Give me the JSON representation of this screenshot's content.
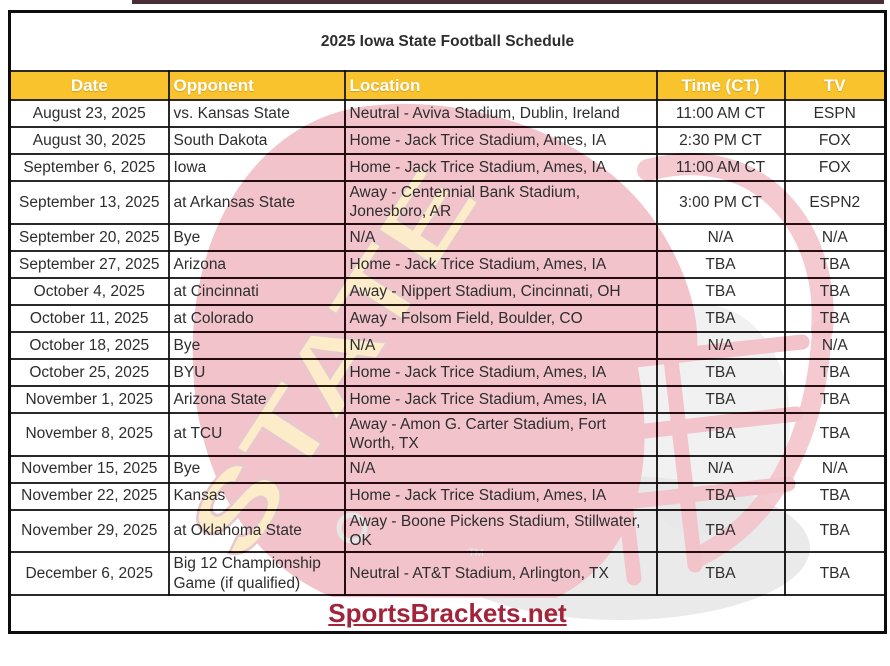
{
  "title": "2025 Iowa State Football Schedule",
  "columns": [
    "Date",
    "Opponent",
    "Location",
    "Time (CT)",
    "TV"
  ],
  "rows": [
    {
      "date": "August 23, 2025",
      "opponent": "vs. Kansas State",
      "location": "Neutral - Aviva Stadium, Dublin, Ireland",
      "time": "11:00 AM CT",
      "tv": "ESPN"
    },
    {
      "date": "August 30, 2025",
      "opponent": "South Dakota",
      "location": "Home - Jack Trice Stadium, Ames, IA",
      "time": "2:30 PM CT",
      "tv": "FOX"
    },
    {
      "date": "September 6, 2025",
      "opponent": "Iowa",
      "location": "Home - Jack Trice Stadium, Ames, IA",
      "time": "11:00 AM CT",
      "tv": "FOX"
    },
    {
      "date": "September 13, 2025",
      "opponent": "at Arkansas State",
      "location": "Away - Centennial Bank Stadium, Jonesboro, AR",
      "time": "3:00 PM CT",
      "tv": "ESPN2"
    },
    {
      "date": "September 20, 2025",
      "opponent": "Bye",
      "location": "N/A",
      "time": "N/A",
      "tv": "N/A"
    },
    {
      "date": "September 27, 2025",
      "opponent": "Arizona",
      "location": "Home - Jack Trice Stadium, Ames, IA",
      "time": "TBA",
      "tv": "TBA"
    },
    {
      "date": "October 4, 2025",
      "opponent": "at Cincinnati",
      "location": "Away - Nippert Stadium, Cincinnati, OH",
      "time": "TBA",
      "tv": "TBA"
    },
    {
      "date": "October 11, 2025",
      "opponent": "at Colorado",
      "location": "Away - Folsom Field, Boulder, CO",
      "time": "TBA",
      "tv": "TBA"
    },
    {
      "date": "October 18, 2025",
      "opponent": "Bye",
      "location": "N/A",
      "time": "N/A",
      "tv": "N/A"
    },
    {
      "date": "October 25, 2025",
      "opponent": "BYU",
      "location": "Home - Jack Trice Stadium, Ames, IA",
      "time": "TBA",
      "tv": "TBA"
    },
    {
      "date": "November 1, 2025",
      "opponent": "Arizona State",
      "location": "Home - Jack Trice Stadium, Ames, IA",
      "time": "TBA",
      "tv": "TBA"
    },
    {
      "date": "November 8, 2025",
      "opponent": "at TCU",
      "location": "Away - Amon G. Carter Stadium, Fort Worth, TX",
      "time": "TBA",
      "tv": "TBA"
    },
    {
      "date": "November 15, 2025",
      "opponent": "Bye",
      "location": "N/A",
      "time": "N/A",
      "tv": "N/A"
    },
    {
      "date": "November 22, 2025",
      "opponent": "Kansas",
      "location": "Home - Jack Trice Stadium, Ames, IA",
      "time": "TBA",
      "tv": "TBA"
    },
    {
      "date": "November 29, 2025",
      "opponent": "at Oklahoma State",
      "location": "Away - Boone Pickens Stadium, Stillwater, OK",
      "time": "TBA",
      "tv": "TBA"
    },
    {
      "date": "December 6, 2025",
      "opponent": "Big 12 Championship Game (if qualified)",
      "location": "Neutral - AT&T Stadium, Arlington, TX",
      "time": "TBA",
      "tv": "TBA"
    }
  ],
  "footer": {
    "site": "SportsBrackets.net"
  },
  "watermark": {
    "name": "iowa-state-helmet-logo",
    "text": "STATE",
    "tm": "TM"
  },
  "colors": {
    "title_crimson": "#A3233B",
    "header_gold": "#F9C32E",
    "watermark_red": "#CE1330",
    "watermark_gold": "#F2B52B",
    "border_black": "#0d0d0d"
  }
}
